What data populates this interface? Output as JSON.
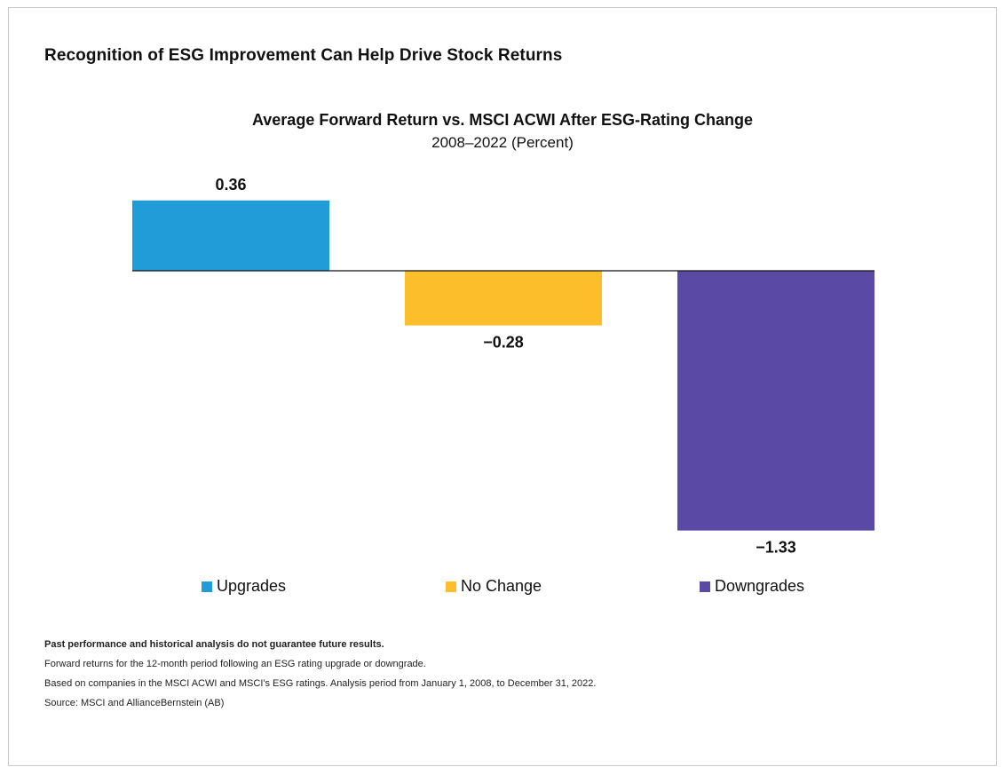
{
  "page_title": "Recognition of ESG Improvement Can Help Drive Stock Returns",
  "chart_data": {
    "type": "bar",
    "title": "Average Forward Return vs. MSCI ACWI After ESG-Rating Change",
    "subtitle": "2008–2022 (Percent)",
    "categories": [
      "Upgrades",
      "No Change",
      "Downgrades"
    ],
    "values": [
      0.36,
      -0.28,
      -1.33
    ],
    "value_labels": [
      "0.36",
      "−0.28",
      "−1.33"
    ],
    "colors": [
      "#219cd8",
      "#fdbe2b",
      "#5a4aa6"
    ],
    "baseline": 0,
    "grid": false,
    "legend_position": "bottom",
    "xlabel": "",
    "ylabel": ""
  },
  "legend": [
    {
      "label": "Upgrades",
      "color": "#219cd8"
    },
    {
      "label": "No Change",
      "color": "#fdbe2b"
    },
    {
      "label": "Downgrades",
      "color": "#5a4aa6"
    }
  ],
  "notes": {
    "disclaimer": "Past performance and historical analysis do not guarantee future results.",
    "line1": "Forward returns for the 12-month period following an ESG rating upgrade or downgrade.",
    "line2": "Based on companies in the MSCI ACWI and MSCI's ESG ratings. Analysis period from January 1, 2008, to December 31, 2022.",
    "source": "Source: MSCI and AllianceBernstein (AB)"
  }
}
